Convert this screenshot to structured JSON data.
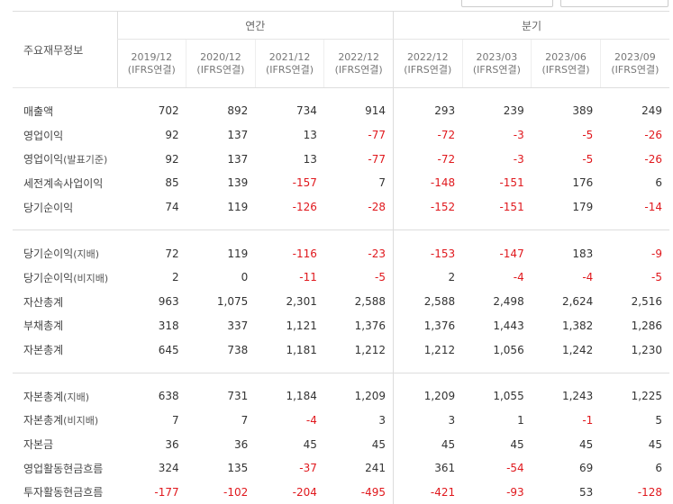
{
  "table": {
    "row_header_label": "주요재무정보",
    "groups": [
      {
        "label": "연간"
      },
      {
        "label": "분기"
      }
    ],
    "columns": [
      {
        "period": "2019/12",
        "basis": "(IFRS연결)"
      },
      {
        "period": "2020/12",
        "basis": "(IFRS연결)"
      },
      {
        "period": "2021/12",
        "basis": "(IFRS연결)"
      },
      {
        "period": "2022/12",
        "basis": "(IFRS연결)"
      },
      {
        "period": "2022/12",
        "basis": "(IFRS연결)"
      },
      {
        "period": "2023/03",
        "basis": "(IFRS연결)"
      },
      {
        "period": "2023/06",
        "basis": "(IFRS연결)"
      },
      {
        "period": "2023/09",
        "basis": "(IFRS연결)"
      }
    ],
    "sections": [
      {
        "rows": [
          {
            "label": "매출액",
            "sub": "",
            "values": [
              "702",
              "892",
              "734",
              "914",
              "293",
              "239",
              "389",
              "249"
            ]
          },
          {
            "label": "영업이익",
            "sub": "",
            "values": [
              "92",
              "137",
              "13",
              "-77",
              "-72",
              "-3",
              "-5",
              "-26"
            ]
          },
          {
            "label": "영업이익",
            "sub": "(발표기준)",
            "values": [
              "92",
              "137",
              "13",
              "-77",
              "-72",
              "-3",
              "-5",
              "-26"
            ]
          },
          {
            "label": "세전계속사업이익",
            "sub": "",
            "values": [
              "85",
              "139",
              "-157",
              "7",
              "-148",
              "-151",
              "176",
              "6"
            ]
          },
          {
            "label": "당기순이익",
            "sub": "",
            "values": [
              "74",
              "119",
              "-126",
              "-28",
              "-152",
              "-151",
              "179",
              "-14"
            ]
          }
        ]
      },
      {
        "rows": [
          {
            "label": "당기순이익",
            "sub": "(지배)",
            "values": [
              "72",
              "119",
              "-116",
              "-23",
              "-153",
              "-147",
              "183",
              "-9"
            ]
          },
          {
            "label": "당기순이익",
            "sub": "(비지배)",
            "values": [
              "2",
              "0",
              "-11",
              "-5",
              "2",
              "-4",
              "-4",
              "-5"
            ]
          },
          {
            "label": "자산총계",
            "sub": "",
            "values": [
              "963",
              "1,075",
              "2,301",
              "2,588",
              "2,588",
              "2,498",
              "2,624",
              "2,516"
            ]
          },
          {
            "label": "부채총계",
            "sub": "",
            "values": [
              "318",
              "337",
              "1,121",
              "1,376",
              "1,376",
              "1,443",
              "1,382",
              "1,286"
            ]
          },
          {
            "label": "자본총계",
            "sub": "",
            "values": [
              "645",
              "738",
              "1,181",
              "1,212",
              "1,212",
              "1,056",
              "1,242",
              "1,230"
            ]
          }
        ]
      },
      {
        "rows": [
          {
            "label": "자본총계",
            "sub": "(지배)",
            "values": [
              "638",
              "731",
              "1,184",
              "1,209",
              "1,209",
              "1,055",
              "1,243",
              "1,225"
            ]
          },
          {
            "label": "자본총계",
            "sub": "(비지배)",
            "values": [
              "7",
              "7",
              "-4",
              "3",
              "3",
              "1",
              "-1",
              "5"
            ]
          },
          {
            "label": "자본금",
            "sub": "",
            "values": [
              "36",
              "36",
              "45",
              "45",
              "45",
              "45",
              "45",
              "45"
            ]
          },
          {
            "label": "영업활동현금흐름",
            "sub": "",
            "values": [
              "324",
              "135",
              "-37",
              "241",
              "361",
              "-54",
              "69",
              "6"
            ]
          },
          {
            "label": "투자활동현금흐름",
            "sub": "",
            "values": [
              "-177",
              "-102",
              "-204",
              "-495",
              "-421",
              "-93",
              "53",
              "-128"
            ]
          }
        ]
      }
    ],
    "colors": {
      "negative": "#e0181d",
      "text": "#333333",
      "header_text": "#666666",
      "border": "#dddddd"
    }
  }
}
